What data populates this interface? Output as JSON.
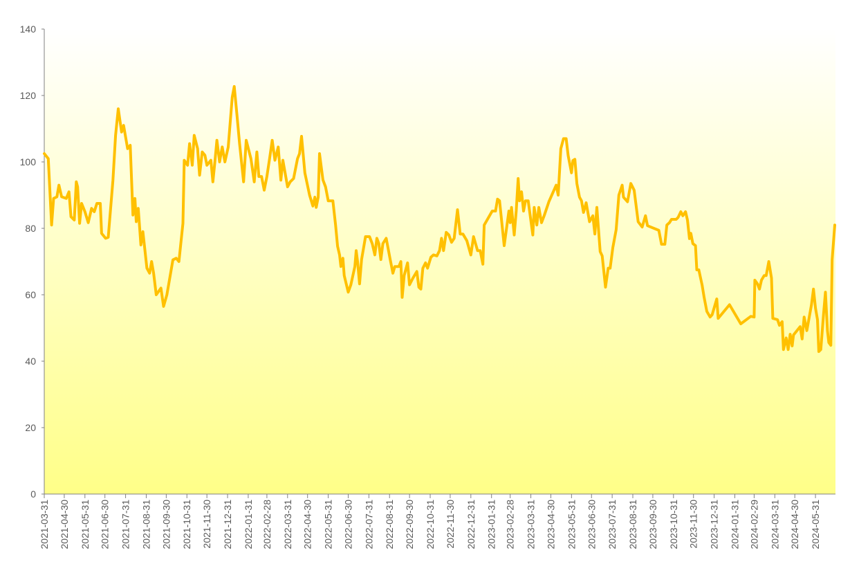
{
  "chart_data": {
    "type": "line",
    "color": "#ffc000",
    "x": [
      "2021-03-31",
      "2021-04-06",
      "2021-04-11",
      "2021-04-14",
      "2021-04-19",
      "2021-04-22",
      "2021-04-26",
      "2021-05-03",
      "2021-05-07",
      "2021-05-10",
      "2021-05-15",
      "2021-05-18",
      "2021-05-20",
      "2021-05-23",
      "2021-05-26",
      "2021-05-31",
      "2021-06-05",
      "2021-06-10",
      "2021-06-14",
      "2021-06-18",
      "2021-06-23",
      "2021-06-25",
      "2021-07-01",
      "2021-07-05",
      "2021-07-12",
      "2021-07-16",
      "2021-07-20",
      "2021-07-25",
      "2021-07-28",
      "2021-08-03",
      "2021-08-07",
      "2021-08-11",
      "2021-08-14",
      "2021-08-16",
      "2021-08-19",
      "2021-08-23",
      "2021-08-26",
      "2021-09-01",
      "2021-09-05",
      "2021-09-08",
      "2021-09-11",
      "2021-09-15",
      "2021-09-22",
      "2021-09-26",
      "2021-10-01",
      "2021-10-10",
      "2021-10-15",
      "2021-10-19",
      "2021-10-25",
      "2021-10-27",
      "2021-11-01",
      "2021-11-04",
      "2021-11-08",
      "2021-11-11",
      "2021-11-16",
      "2021-11-19",
      "2021-11-23",
      "2021-11-27",
      "2021-11-30",
      "2021-12-06",
      "2021-12-09",
      "2021-12-12",
      "2021-12-15",
      "2021-12-19",
      "2021-12-23",
      "2021-12-27",
      "2022-01-01",
      "2022-01-07",
      "2022-01-10",
      "2022-01-14",
      "2022-01-18",
      "2022-01-24",
      "2022-01-28",
      "2022-02-04",
      "2022-02-09",
      "2022-02-13",
      "2022-02-16",
      "2022-02-20",
      "2022-02-24",
      "2022-02-28",
      "2022-03-04",
      "2022-03-08",
      "2022-03-12",
      "2022-03-17",
      "2022-03-21",
      "2022-03-24",
      "2022-03-31",
      "2022-04-04",
      "2022-04-09",
      "2022-04-15",
      "2022-04-18",
      "2022-04-21",
      "2022-04-26",
      "2022-05-03",
      "2022-05-08",
      "2022-05-11",
      "2022-05-13",
      "2022-05-16",
      "2022-05-18",
      "2022-05-23",
      "2022-05-27",
      "2022-05-31",
      "2022-06-07",
      "2022-06-11",
      "2022-06-14",
      "2022-06-17",
      "2022-06-19",
      "2022-06-22",
      "2022-06-24",
      "2022-06-30",
      "2022-07-04",
      "2022-07-10",
      "2022-07-12",
      "2022-07-14",
      "2022-07-17",
      "2022-07-20",
      "2022-07-26",
      "2022-08-01",
      "2022-08-05",
      "2022-08-09",
      "2022-08-12",
      "2022-08-15",
      "2022-08-18",
      "2022-08-21",
      "2022-08-26",
      "2022-09-01",
      "2022-09-05",
      "2022-09-08",
      "2022-09-14",
      "2022-09-17",
      "2022-09-19",
      "2022-09-22",
      "2022-09-27",
      "2022-09-30",
      "2022-10-05",
      "2022-10-11",
      "2022-10-14",
      "2022-10-17",
      "2022-10-20",
      "2022-10-24",
      "2022-10-27",
      "2022-11-01",
      "2022-11-05",
      "2022-11-10",
      "2022-11-14",
      "2022-11-17",
      "2022-11-20",
      "2022-11-24",
      "2022-11-28",
      "2022-12-02",
      "2022-12-06",
      "2022-12-11",
      "2022-12-15",
      "2022-12-19",
      "2022-12-25",
      "2022-12-31",
      "2023-01-04",
      "2023-01-10",
      "2023-01-14",
      "2023-01-18",
      "2023-01-20",
      "2023-02-01",
      "2023-02-06",
      "2023-02-09",
      "2023-02-12",
      "2023-02-19",
      "2023-02-26",
      "2023-02-28",
      "2023-03-02",
      "2023-03-06",
      "2023-03-09",
      "2023-03-12",
      "2023-03-14",
      "2023-03-17",
      "2023-03-20",
      "2023-03-23",
      "2023-03-27",
      "2023-04-03",
      "2023-04-05",
      "2023-04-09",
      "2023-04-12",
      "2023-04-16",
      "2023-04-20",
      "2023-04-27",
      "2023-05-08",
      "2023-05-11",
      "2023-05-15",
      "2023-05-19",
      "2023-05-23",
      "2023-05-26",
      "2023-05-31",
      "2023-06-02",
      "2023-06-05",
      "2023-06-08",
      "2023-06-12",
      "2023-06-15",
      "2023-06-18",
      "2023-06-22",
      "2023-06-27",
      "2023-07-02",
      "2023-07-05",
      "2023-07-08",
      "2023-07-13",
      "2023-07-16",
      "2023-07-21",
      "2023-07-25",
      "2023-07-28",
      "2023-08-01",
      "2023-08-06",
      "2023-08-10",
      "2023-08-15",
      "2023-08-17",
      "2023-08-23",
      "2023-08-28",
      "2023-09-02",
      "2023-09-08",
      "2023-09-14",
      "2023-09-19",
      "2023-09-22",
      "2023-10-09",
      "2023-10-13",
      "2023-10-18",
      "2023-10-21",
      "2023-10-25",
      "2023-10-28",
      "2023-11-04",
      "2023-11-07",
      "2023-11-11",
      "2023-11-14",
      "2023-11-18",
      "2023-11-21",
      "2023-11-24",
      "2023-11-26",
      "2023-11-29",
      "2023-12-03",
      "2023-12-05",
      "2023-12-08",
      "2023-12-13",
      "2023-12-16",
      "2023-12-20",
      "2023-12-25",
      "2023-12-28",
      "2024-01-04",
      "2024-01-06",
      "2024-01-23",
      "2024-02-09",
      "2024-02-24",
      "2024-02-29",
      "2024-03-01",
      "2024-03-05",
      "2024-03-08",
      "2024-03-11",
      "2024-03-15",
      "2024-03-18",
      "2024-03-22",
      "2024-03-26",
      "2024-03-28",
      "2024-04-04",
      "2024-04-07",
      "2024-04-11",
      "2024-04-13",
      "2024-04-17",
      "2024-04-20",
      "2024-04-23",
      "2024-04-26",
      "2024-04-28",
      "2024-05-08",
      "2024-05-11",
      "2024-05-14",
      "2024-05-18",
      "2024-05-25",
      "2024-05-28",
      "2024-05-31",
      "2024-06-03",
      "2024-06-05",
      "2024-06-08",
      "2024-06-12",
      "2024-06-15",
      "2024-06-18",
      "2024-06-20",
      "2024-06-23",
      "2024-06-25",
      "2024-06-29"
    ],
    "values": [
      102.5,
      101,
      81,
      89,
      89.5,
      93,
      89.5,
      89,
      91,
      83.5,
      82.5,
      94,
      92.5,
      81.5,
      87.5,
      85,
      81.7,
      86,
      85,
      87.5,
      87.5,
      78.5,
      77,
      77.3,
      94.5,
      108,
      116,
      109,
      111,
      104,
      105,
      84,
      89,
      82,
      86,
      75,
      79,
      68,
      66.5,
      70,
      66.5,
      60,
      62,
      56.5,
      60,
      70.5,
      71,
      70,
      81.5,
      100.5,
      99,
      105.5,
      99,
      108,
      104,
      96,
      103,
      102,
      99,
      100.5,
      94,
      100,
      106.5,
      100,
      104.5,
      100,
      104.5,
      119.5,
      122.7,
      114.4,
      105.5,
      94,
      106.5,
      101,
      94,
      103,
      95.6,
      95.6,
      91.5,
      95.6,
      101,
      106.5,
      100.5,
      104.5,
      94.5,
      100.5,
      92.5,
      94,
      95,
      101,
      102.5,
      107.7,
      96.7,
      90,
      86.7,
      89.4,
      86.3,
      89.4,
      102.5,
      94.6,
      92.5,
      88.3,
      88.3,
      81,
      74.6,
      72,
      68.5,
      71,
      65.8,
      60.8,
      63,
      68.5,
      73.3,
      70,
      63.3,
      70.6,
      77.5,
      77.5,
      75.4,
      72,
      77,
      75.4,
      70.6,
      75.4,
      77,
      70.6,
      66.5,
      68.5,
      68.5,
      70,
      59.2,
      65.8,
      69.6,
      63,
      65,
      67,
      62.3,
      61.7,
      68,
      69.6,
      68,
      71.3,
      72,
      71.7,
      73.3,
      77,
      73.3,
      78.8,
      78,
      75.8,
      77,
      85.6,
      78.3,
      78.3,
      76.3,
      72,
      77.5,
      73.3,
      73.3,
      69.2,
      81,
      85.2,
      85.2,
      88.8,
      88.3,
      74.8,
      85.2,
      81.7,
      86.3,
      78,
      85.2,
      95,
      88.3,
      91,
      85.2,
      88.3,
      88.3,
      78,
      86.3,
      81,
      86.3,
      81.7,
      83.8,
      88,
      93,
      90,
      104,
      107,
      107,
      101.9,
      96.7,
      100.4,
      100.8,
      93.5,
      89.4,
      88.3,
      84.8,
      87.7,
      82,
      83.8,
      78.3,
      86.3,
      73,
      71.7,
      62.3,
      68,
      68,
      74.2,
      79.6,
      90,
      93,
      89.4,
      88,
      93.5,
      91.5,
      82,
      80.4,
      83.8,
      80.8,
      79.4,
      75.2,
      75.2,
      81,
      81.7,
      82.7,
      82.7,
      83.3,
      85,
      83.8,
      85,
      82.5,
      76.9,
      78.5,
      75.4,
      74.8,
      67.5,
      67.5,
      62.9,
      59.2,
      55,
      53.3,
      54,
      58.75,
      52.9,
      57,
      51.25,
      53.5,
      53.3,
      64.4,
      63.3,
      61.7,
      64.4,
      65.8,
      65.8,
      70,
      65,
      52.9,
      52.5,
      50.8,
      51.9,
      43.5,
      47,
      43.5,
      48.1,
      44.6,
      47.9,
      50.4,
      46.7,
      53.3,
      49.2,
      57,
      61.7,
      56,
      52.5,
      42.9,
      43.5,
      54,
      60.8,
      49.2,
      45.6,
      44.8,
      70.6,
      81
    ],
    "xlim": [
      "2021-03-31",
      "2024-06-30"
    ],
    "xticks": [
      "2021-03-31",
      "2021-04-30",
      "2021-05-31",
      "2021-06-30",
      "2021-07-31",
      "2021-08-31",
      "2021-09-30",
      "2021-10-31",
      "2021-11-30",
      "2021-12-31",
      "2022-01-31",
      "2022-02-28",
      "2022-03-31",
      "2022-04-30",
      "2022-05-31",
      "2022-06-30",
      "2022-07-31",
      "2022-08-31",
      "2022-09-30",
      "2022-10-31",
      "2022-11-30",
      "2022-12-31",
      "2023-01-31",
      "2023-02-28",
      "2023-03-31",
      "2023-04-30",
      "2023-05-31",
      "2023-06-30",
      "2023-07-31",
      "2023-08-31",
      "2023-09-30",
      "2023-10-31",
      "2023-11-30",
      "2023-12-31",
      "2024-01-31",
      "2024-02-29",
      "2024-03-31",
      "2024-04-30",
      "2024-05-31"
    ],
    "ylim": [
      0,
      140
    ],
    "yticks": [
      0,
      20,
      40,
      60,
      80,
      100,
      120,
      140
    ]
  }
}
